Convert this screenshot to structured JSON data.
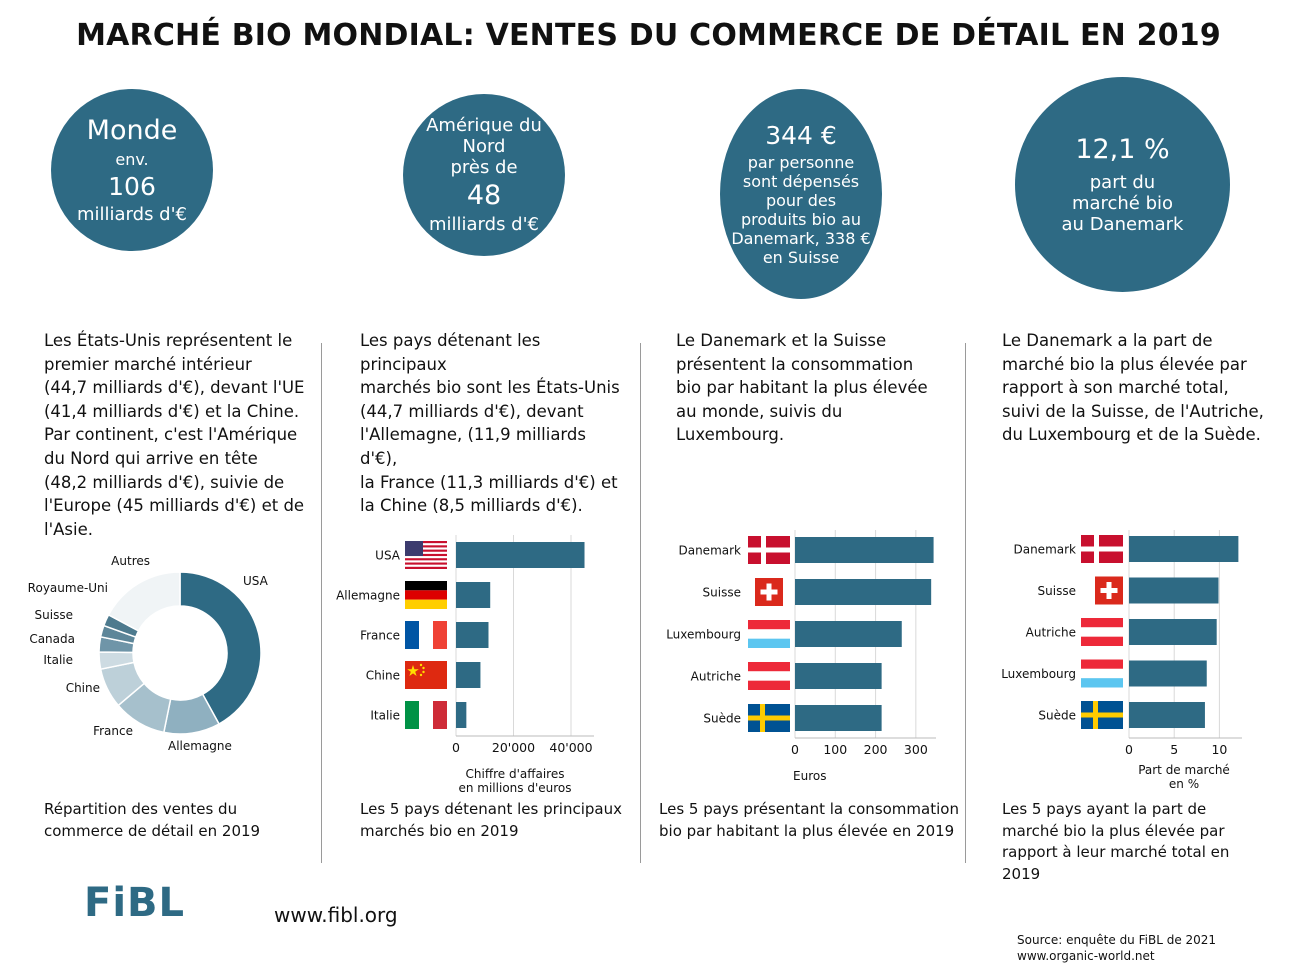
{
  "title": "MARCHÉ BIO MONDIAL: VENTES DU COMMERCE DE DÉTAIL EN 2019",
  "colors": {
    "primary": "#2e6a84",
    "light": "#f0f4f6"
  },
  "circles": [
    {
      "lines": [
        "Monde",
        "env.",
        "106",
        "milliards  d'€"
      ]
    },
    {
      "lines": [
        "Amérique du",
        "Nord",
        "près de",
        "48",
        "milliards d'€"
      ]
    },
    {
      "lines": [
        "344 €",
        "par personne",
        "sont dépensés",
        "pour des",
        "produits bio au",
        "Danemark, 338 €",
        "en Suisse"
      ]
    },
    {
      "lines": [
        "12,1 %",
        "part du",
        "marché bio",
        "au Danemark"
      ]
    }
  ],
  "paragraphs": [
    [
      "Les États-Unis représentent le",
      "premier marché intérieur",
      "(44,7 milliards d'€), devant l'UE",
      "(41,4 milliards d'€) et la Chine.",
      "Par continent, c'est l'Amérique",
      "du Nord qui arrive en tête",
      "(48,2 milliards d'€), suivie de",
      "l'Europe (45 milliards d'€) et de",
      "l'Asie."
    ],
    [
      "Les pays détenant les principaux",
      "marchés bio sont les États-Unis",
      "(44,7 milliards d'€), devant",
      "l'Allemagne, (11,9 milliards d'€),",
      "la France (11,3 milliards d'€) et",
      "la Chine (8,5 milliards d'€)."
    ],
    [
      "Le Danemark et la Suisse",
      "présentent la consommation",
      "bio par habitant la plus élevée",
      "au monde, suivis du",
      "Luxembourg."
    ],
    [
      "Le Danemark a la part de",
      "marché bio la plus élevée par",
      "rapport à son marché total,",
      "suivi de la Suisse, de l'Autriche,",
      "du Luxembourg et de la Suède."
    ]
  ],
  "captions": [
    [
      "Répartition des ventes du",
      "commerce de détail en 2019"
    ],
    [
      "Les 5 pays détenant les principaux",
      "marchés bio en 2019"
    ],
    [
      "Les 5 pays présentant la consommation",
      "bio par habitant la plus élevée en 2019"
    ],
    [
      "Les 5 pays ayant la part de",
      "marché bio la plus élevée par",
      "rapport à leur marché total en",
      "2019"
    ]
  ],
  "chart_data": [
    {
      "type": "pie",
      "categories": [
        "USA",
        "Allemagne",
        "France",
        "Chine",
        "Italie",
        "Canada",
        "Suisse",
        "Royaume-Uni",
        "Autres"
      ],
      "values": [
        42.0,
        11.2,
        10.6,
        8.0,
        3.4,
        3.0,
        2.3,
        2.3,
        17.2
      ]
    },
    {
      "type": "bar",
      "categories": [
        "USA",
        "Allemagne",
        "France",
        "Chine",
        "Italie"
      ],
      "values": [
        44700,
        11900,
        11300,
        8500,
        3600
      ],
      "xlabel": "Chiffre d'affaires\nen millions d'euros",
      "xlim": [
        0,
        48000
      ],
      "ticks": [
        0,
        20000,
        40000
      ],
      "tick_labels": [
        "0",
        "20'000",
        "40'000"
      ]
    },
    {
      "type": "bar",
      "categories": [
        "Danemark",
        "Suisse",
        "Luxembourg",
        "Autriche",
        "Suède"
      ],
      "values": [
        344,
        338,
        265,
        215,
        215
      ],
      "xlabel": "Euros",
      "xlim": [
        0,
        350
      ],
      "ticks": [
        0,
        100,
        200,
        300
      ],
      "tick_labels": [
        "0",
        "100",
        "200",
        "300"
      ]
    },
    {
      "type": "bar",
      "categories": [
        "Danemark",
        "Suisse",
        "Autriche",
        "Luxembourg",
        "Suède"
      ],
      "values": [
        12.1,
        9.9,
        9.7,
        8.6,
        8.4
      ],
      "xlabel": "Part de marché\nen %",
      "xlim": [
        0,
        12.5
      ],
      "ticks": [
        0,
        5,
        10
      ],
      "tick_labels": [
        "0",
        "5",
        "10"
      ]
    }
  ],
  "footer": {
    "logo": "FiBL",
    "url": "www.fibl.org",
    "source_lines": [
      "Source: enquête du FiBL de 2021",
      " www.organic-world.net"
    ]
  }
}
